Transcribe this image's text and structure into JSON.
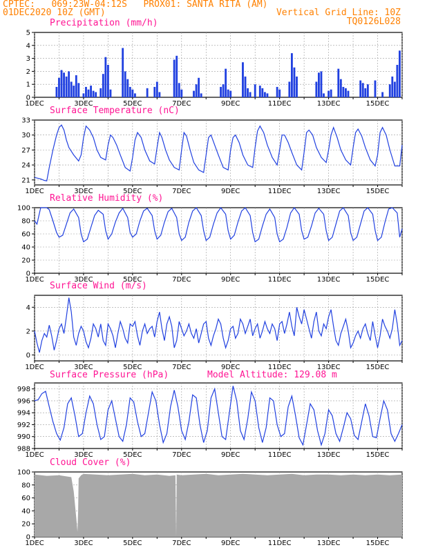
{
  "header": {
    "line1": "CPTEC:   069:23W-04:12S   PROX01: SANTA RITA (AM)",
    "line2": "01DEC2020 10Z (GMT)",
    "right1": "Vertical Grid Line: 10Z",
    "right2": "TQ0126L028"
  },
  "colors": {
    "header": "#ff8000",
    "title": "#ff1493",
    "line": "#2040e0",
    "bar": "#2040e0",
    "cloud": "#a8a8a8",
    "wind_arrow": "#000000"
  },
  "x_tick_labels": [
    "1DEC",
    "3DEC",
    "5DEC",
    "7DEC",
    "9DEC",
    "11DEC",
    "13DEC",
    "15DEC"
  ],
  "chart_data": [
    {
      "type": "bar",
      "title": "Precipitation (mm/h)",
      "ylim": [
        0,
        5
      ],
      "yticks": [
        0,
        1,
        2,
        3,
        4,
        5
      ],
      "x_range_days": [
        1,
        16
      ],
      "x": [
        1.9,
        2.0,
        2.1,
        2.2,
        2.3,
        2.4,
        2.5,
        2.6,
        2.7,
        2.8,
        3.0,
        3.1,
        3.2,
        3.3,
        3.4,
        3.5,
        3.7,
        3.8,
        3.9,
        4.0,
        4.1,
        4.6,
        4.7,
        4.8,
        4.9,
        5.0,
        5.1,
        5.6,
        5.9,
        6.0,
        6.1,
        6.7,
        6.8,
        6.9,
        7.0,
        7.5,
        7.6,
        7.7,
        7.8,
        8.6,
        8.7,
        8.8,
        8.9,
        9.0,
        9.5,
        9.6,
        9.7,
        9.8,
        10.0,
        10.2,
        10.3,
        10.4,
        10.5,
        10.9,
        11.0,
        11.4,
        11.5,
        11.6,
        11.7,
        12.5,
        12.6,
        12.7,
        12.8,
        13.0,
        13.1,
        13.4,
        13.5,
        13.6,
        13.7,
        13.8,
        14.3,
        14.4,
        14.5,
        14.6,
        14.9,
        15.2,
        15.5,
        15.6,
        15.7,
        15.8,
        15.9
      ],
      "values": [
        0.8,
        1.5,
        2.1,
        1.9,
        1.6,
        2.0,
        1.2,
        0.9,
        1.7,
        1.1,
        0.3,
        0.8,
        0.6,
        0.9,
        0.5,
        0.4,
        0.7,
        1.8,
        3.1,
        2.5,
        0.6,
        3.8,
        2.0,
        1.4,
        0.8,
        0.6,
        0.3,
        0.7,
        0.8,
        1.2,
        0.4,
        2.9,
        3.2,
        1.1,
        0.6,
        0.5,
        1.0,
        1.5,
        0.3,
        0.8,
        1.0,
        2.2,
        0.6,
        0.5,
        2.7,
        1.6,
        0.7,
        0.4,
        1.0,
        0.9,
        0.7,
        0.4,
        0.3,
        0.8,
        0.6,
        1.2,
        3.4,
        2.3,
        1.6,
        1.2,
        1.9,
        2.0,
        0.3,
        0.5,
        0.6,
        2.2,
        1.4,
        0.8,
        0.7,
        0.5,
        1.3,
        1.1,
        0.7,
        1.0,
        1.3,
        0.4,
        1.0,
        1.6,
        1.2,
        2.5,
        3.6
      ]
    },
    {
      "type": "line",
      "title": "Surface Temperature (nC)",
      "ylim": [
        20,
        33
      ],
      "yticks": [
        21,
        24,
        27,
        30,
        33
      ],
      "x_range_days": [
        1,
        16
      ],
      "x": [
        1.0,
        1.25,
        1.4,
        1.5,
        1.6,
        1.75,
        1.9,
        2.0,
        2.1,
        2.2,
        2.3,
        2.4,
        2.6,
        2.8,
        2.9,
        3.0,
        3.1,
        3.25,
        3.4,
        3.55,
        3.7,
        3.9,
        4.0,
        4.1,
        4.2,
        4.35,
        4.5,
        4.7,
        4.9,
        5.0,
        5.1,
        5.2,
        5.35,
        5.5,
        5.7,
        5.9,
        6.0,
        6.1,
        6.2,
        6.35,
        6.5,
        6.7,
        6.9,
        7.0,
        7.1,
        7.2,
        7.35,
        7.5,
        7.7,
        7.9,
        8.0,
        8.1,
        8.2,
        8.35,
        8.5,
        8.7,
        8.9,
        9.0,
        9.1,
        9.2,
        9.35,
        9.5,
        9.7,
        9.9,
        10.0,
        10.1,
        10.2,
        10.35,
        10.5,
        10.7,
        10.9,
        11.0,
        11.1,
        11.2,
        11.35,
        11.5,
        11.7,
        11.9,
        12.0,
        12.1,
        12.2,
        12.35,
        12.5,
        12.7,
        12.9,
        13.0,
        13.1,
        13.2,
        13.35,
        13.5,
        13.7,
        13.9,
        14.0,
        14.1,
        14.2,
        14.35,
        14.5,
        14.7,
        14.9,
        15.0,
        15.1,
        15.2,
        15.35,
        15.5,
        15.7,
        15.9,
        16.0
      ],
      "values": [
        21.5,
        21.2,
        20.9,
        20.8,
        23.5,
        27.0,
        30.0,
        31.5,
        32.0,
        31.0,
        29.0,
        27.5,
        26.0,
        24.8,
        26.0,
        29.5,
        31.8,
        31.0,
        29.5,
        27.0,
        25.5,
        25.0,
        28.0,
        30.0,
        29.5,
        28.0,
        26.0,
        23.5,
        22.8,
        25.5,
        29.0,
        30.5,
        29.5,
        27.0,
        24.8,
        24.2,
        27.5,
        30.5,
        29.5,
        27.0,
        25.0,
        23.5,
        23.0,
        27.0,
        30.5,
        29.8,
        27.0,
        24.5,
        23.0,
        22.5,
        26.0,
        29.5,
        30.0,
        28.0,
        26.0,
        23.5,
        23.0,
        27.0,
        29.5,
        30.0,
        28.5,
        26.0,
        24.0,
        23.5,
        27.5,
        30.8,
        31.8,
        30.5,
        28.0,
        25.5,
        24.0,
        27.0,
        30.0,
        30.0,
        28.5,
        26.5,
        24.0,
        23.0,
        26.5,
        30.5,
        31.0,
        30.0,
        27.5,
        25.5,
        24.5,
        27.0,
        30.0,
        31.5,
        29.5,
        27.0,
        25.0,
        24.0,
        27.5,
        30.5,
        31.2,
        29.8,
        27.5,
        25.0,
        23.8,
        26.0,
        30.5,
        31.5,
        30.0,
        27.0,
        23.8,
        23.8,
        28.0
      ]
    },
    {
      "type": "line",
      "title": "Relative Humidity (%)",
      "ylim": [
        0,
        100
      ],
      "yticks": [
        0,
        20,
        40,
        60,
        80,
        100
      ],
      "x_range_days": [
        1,
        16
      ],
      "x": [
        1.0,
        1.1,
        1.25,
        1.4,
        1.5,
        1.6,
        1.75,
        1.9,
        2.0,
        2.15,
        2.3,
        2.45,
        2.6,
        2.8,
        2.9,
        3.0,
        3.15,
        3.3,
        3.45,
        3.6,
        3.8,
        3.9,
        4.0,
        4.15,
        4.3,
        4.45,
        4.6,
        4.8,
        4.9,
        5.0,
        5.15,
        5.3,
        5.45,
        5.6,
        5.8,
        5.9,
        6.0,
        6.15,
        6.3,
        6.45,
        6.6,
        6.8,
        6.9,
        7.0,
        7.15,
        7.3,
        7.45,
        7.6,
        7.8,
        7.9,
        8.0,
        8.15,
        8.3,
        8.45,
        8.6,
        8.8,
        8.9,
        9.0,
        9.15,
        9.3,
        9.45,
        9.6,
        9.8,
        9.9,
        10.0,
        10.15,
        10.3,
        10.45,
        10.6,
        10.8,
        10.9,
        11.0,
        11.15,
        11.3,
        11.45,
        11.6,
        11.8,
        11.9,
        12.0,
        12.15,
        12.3,
        12.45,
        12.6,
        12.8,
        12.9,
        13.0,
        13.15,
        13.3,
        13.45,
        13.6,
        13.8,
        13.9,
        14.0,
        14.15,
        14.3,
        14.45,
        14.6,
        14.8,
        14.9,
        15.0,
        15.15,
        15.3,
        15.45,
        15.6,
        15.8,
        15.9,
        16.0
      ],
      "values": [
        80,
        75,
        100,
        100,
        100,
        97,
        80,
        62,
        55,
        58,
        75,
        92,
        98,
        85,
        60,
        48,
        52,
        70,
        88,
        96,
        90,
        65,
        52,
        60,
        78,
        92,
        99,
        85,
        62,
        55,
        60,
        80,
        95,
        99,
        88,
        65,
        52,
        58,
        78,
        94,
        99,
        85,
        60,
        50,
        55,
        78,
        95,
        100,
        88,
        65,
        50,
        55,
        75,
        92,
        100,
        90,
        65,
        52,
        58,
        78,
        95,
        100,
        88,
        62,
        48,
        52,
        72,
        90,
        98,
        85,
        60,
        48,
        52,
        70,
        92,
        100,
        90,
        65,
        52,
        55,
        72,
        92,
        99,
        90,
        65,
        50,
        55,
        75,
        95,
        100,
        88,
        62,
        50,
        55,
        75,
        95,
        100,
        90,
        65,
        50,
        55,
        78,
        98,
        100,
        92,
        55,
        68
      ]
    },
    {
      "type": "line",
      "title": "Surface Wind (m/s)",
      "ylim": [
        -0.5,
        5
      ],
      "yticks": [
        0,
        2,
        4
      ],
      "x_range_days": [
        1,
        16
      ],
      "x": [
        1.0,
        1.1,
        1.2,
        1.3,
        1.4,
        1.5,
        1.6,
        1.7,
        1.8,
        1.9,
        2.0,
        2.1,
        2.2,
        2.3,
        2.4,
        2.5,
        2.6,
        2.7,
        2.8,
        2.9,
        3.0,
        3.1,
        3.2,
        3.3,
        3.4,
        3.5,
        3.6,
        3.7,
        3.8,
        3.9,
        4.0,
        4.1,
        4.2,
        4.3,
        4.4,
        4.5,
        4.6,
        4.7,
        4.8,
        4.9,
        5.0,
        5.1,
        5.2,
        5.3,
        5.4,
        5.5,
        5.6,
        5.7,
        5.8,
        5.9,
        6.0,
        6.1,
        6.2,
        6.3,
        6.4,
        6.5,
        6.6,
        6.7,
        6.8,
        6.9,
        7.0,
        7.1,
        7.2,
        7.3,
        7.4,
        7.5,
        7.6,
        7.7,
        7.8,
        7.9,
        8.0,
        8.1,
        8.2,
        8.3,
        8.4,
        8.5,
        8.6,
        8.7,
        8.8,
        8.9,
        9.0,
        9.1,
        9.2,
        9.3,
        9.4,
        9.5,
        9.6,
        9.7,
        9.8,
        9.9,
        10.0,
        10.1,
        10.2,
        10.3,
        10.4,
        10.5,
        10.6,
        10.7,
        10.8,
        10.9,
        11.0,
        11.1,
        11.2,
        11.3,
        11.4,
        11.5,
        11.6,
        11.7,
        11.8,
        11.9,
        12.0,
        12.1,
        12.2,
        12.3,
        12.4,
        12.5,
        12.6,
        12.7,
        12.8,
        12.9,
        13.0,
        13.1,
        13.2,
        13.3,
        13.4,
        13.5,
        13.6,
        13.7,
        13.8,
        13.9,
        14.0,
        14.1,
        14.2,
        14.3,
        14.4,
        14.5,
        14.6,
        14.7,
        14.8,
        14.9,
        15.0,
        15.1,
        15.2,
        15.3,
        15.4,
        15.5,
        15.6,
        15.7,
        15.8,
        15.9,
        16.0
      ],
      "values": [
        2.0,
        1.0,
        0.2,
        1.2,
        1.8,
        1.5,
        2.5,
        1.6,
        0.4,
        1.2,
        2.2,
        2.6,
        1.8,
        3.2,
        4.8,
        3.6,
        1.5,
        0.8,
        1.8,
        2.4,
        2.0,
        1.1,
        0.6,
        1.4,
        2.6,
        2.2,
        1.5,
        2.6,
        1.2,
        0.8,
        2.6,
        2.2,
        1.6,
        0.6,
        1.8,
        2.8,
        2.2,
        1.4,
        1.0,
        2.6,
        2.4,
        2.8,
        1.6,
        0.8,
        2.0,
        2.6,
        1.8,
        2.2,
        2.4,
        1.5,
        2.8,
        3.6,
        2.2,
        1.2,
        2.6,
        3.2,
        2.4,
        0.6,
        1.2,
        2.8,
        2.2,
        1.6,
        2.0,
        2.6,
        1.8,
        1.4,
        2.2,
        1.0,
        1.8,
        2.6,
        2.8,
        1.4,
        0.8,
        1.6,
        2.2,
        3.0,
        2.6,
        1.4,
        0.6,
        1.2,
        2.2,
        2.4,
        1.4,
        1.8,
        3.0,
        2.6,
        1.8,
        2.4,
        3.0,
        1.6,
        2.2,
        2.6,
        1.4,
        2.0,
        2.8,
        2.2,
        1.8,
        2.6,
        2.2,
        1.2,
        2.6,
        2.8,
        1.8,
        2.6,
        3.6,
        2.4,
        1.6,
        4.0,
        3.2,
        2.6,
        3.8,
        3.0,
        2.2,
        1.4,
        2.8,
        3.6,
        2.0,
        1.6,
        2.6,
        2.2,
        3.2,
        3.8,
        2.4,
        1.2,
        0.8,
        1.8,
        2.4,
        3.0,
        2.0,
        0.6,
        1.0,
        1.6,
        2.0,
        1.4,
        2.2,
        2.6,
        1.8,
        1.2,
        2.8,
        1.6,
        0.6,
        1.6,
        3.0,
        2.4,
        2.0,
        1.4,
        2.2,
        3.8,
        2.6,
        0.8,
        1.2
      ]
    },
    {
      "type": "line",
      "title": "Surface Pressure (hPa)",
      "annotation": "Model Altitude: 129.08 m",
      "ylim": [
        988,
        999
      ],
      "yticks": [
        988,
        990,
        992,
        994,
        996,
        998
      ],
      "x_range_days": [
        1,
        16
      ],
      "x": [
        1.0,
        1.15,
        1.3,
        1.45,
        1.6,
        1.75,
        1.9,
        2.05,
        2.2,
        2.35,
        2.5,
        2.65,
        2.8,
        2.95,
        3.1,
        3.25,
        3.4,
        3.55,
        3.7,
        3.85,
        4.0,
        4.15,
        4.3,
        4.45,
        4.6,
        4.75,
        4.9,
        5.05,
        5.2,
        5.35,
        5.5,
        5.65,
        5.8,
        5.95,
        6.1,
        6.25,
        6.4,
        6.55,
        6.7,
        6.85,
        7.0,
        7.15,
        7.3,
        7.45,
        7.6,
        7.75,
        7.9,
        8.05,
        8.2,
        8.35,
        8.5,
        8.65,
        8.8,
        8.95,
        9.1,
        9.25,
        9.4,
        9.55,
        9.7,
        9.85,
        10.0,
        10.15,
        10.3,
        10.45,
        10.6,
        10.75,
        10.9,
        11.05,
        11.2,
        11.35,
        11.5,
        11.65,
        11.8,
        11.95,
        12.1,
        12.25,
        12.4,
        12.55,
        12.7,
        12.85,
        13.0,
        13.15,
        13.3,
        13.45,
        13.6,
        13.75,
        13.9,
        14.05,
        14.2,
        14.35,
        14.5,
        14.65,
        14.8,
        14.95,
        15.1,
        15.25,
        15.4,
        15.55,
        15.7,
        15.85,
        16.0
      ],
      "values": [
        996.0,
        996.2,
        997.2,
        997.6,
        995.0,
        992.5,
        990.5,
        989.4,
        991.5,
        995.5,
        996.5,
        993.5,
        990.0,
        990.5,
        994.0,
        996.8,
        995.5,
        992.0,
        989.5,
        990.0,
        994.5,
        996.0,
        993.0,
        990.0,
        989.2,
        992.0,
        996.5,
        995.8,
        992.5,
        990.0,
        990.5,
        994.0,
        997.5,
        996.0,
        992.0,
        989.0,
        990.5,
        995.0,
        997.8,
        995.0,
        991.0,
        989.5,
        992.5,
        997.0,
        996.5,
        992.0,
        989.0,
        991.0,
        996.5,
        998.0,
        994.0,
        990.0,
        989.5,
        994.0,
        998.5,
        996.0,
        991.0,
        989.5,
        993.0,
        997.5,
        996.0,
        991.5,
        989.0,
        991.5,
        996.5,
        996.0,
        992.0,
        990.0,
        990.5,
        995.0,
        996.8,
        993.5,
        989.8,
        988.6,
        992.0,
        995.5,
        994.5,
        991.0,
        988.6,
        990.5,
        994.5,
        993.5,
        990.5,
        989.2,
        991.5,
        994.0,
        993.0,
        990.2,
        989.5,
        992.5,
        995.5,
        993.5,
        990.0,
        989.8,
        993.0,
        996.0,
        994.5,
        990.5,
        989.2,
        990.5,
        992.0
      ]
    },
    {
      "type": "area",
      "title": "Cloud Cover (%)",
      "ylim": [
        0,
        100
      ],
      "yticks": [
        0,
        20,
        40,
        60,
        80,
        100
      ],
      "x_range_days": [
        1,
        16
      ],
      "x": [
        1.0,
        1.5,
        2.0,
        2.5,
        2.6,
        2.7,
        2.75,
        2.78,
        2.8,
        2.9,
        3.0,
        3.5,
        4.0,
        4.5,
        5.0,
        5.5,
        6.0,
        6.5,
        6.75,
        6.78,
        6.8,
        7.0,
        7.5,
        8.0,
        8.5,
        9.0,
        9.5,
        10.0,
        10.5,
        11.0,
        11.5,
        12.0,
        12.5,
        13.0,
        13.5,
        14.0,
        14.5,
        15.0,
        15.5,
        16.0
      ],
      "values": [
        96,
        94,
        95,
        92,
        70,
        30,
        8,
        40,
        90,
        95,
        97,
        96,
        95,
        96,
        97,
        95,
        96,
        94,
        95,
        0,
        96,
        95,
        96,
        97,
        95,
        96,
        97,
        96,
        95,
        96,
        97,
        95,
        96,
        96,
        95,
        96,
        95,
        96,
        95,
        96
      ]
    }
  ]
}
